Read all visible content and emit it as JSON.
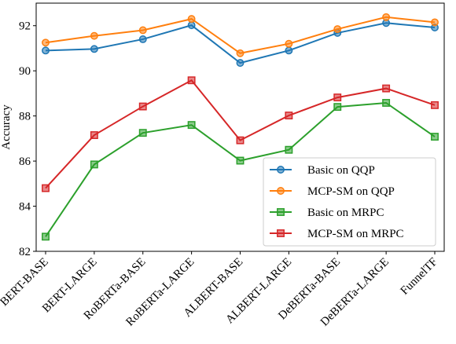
{
  "chart_data": {
    "type": "line",
    "title": "",
    "xlabel": "",
    "ylabel": "Accuracy",
    "ylim": [
      82,
      93
    ],
    "yticks": [
      82,
      84,
      86,
      88,
      90,
      92
    ],
    "grid": false,
    "legend_position": "lower-right",
    "categories": [
      "BERT-BASE",
      "BERT-LARGE",
      "RoBERTa-BASE",
      "RoBERTa-LARGE",
      "ALBERT-BASE",
      "ALBERT-LARGE",
      "DeBERTa-BASE",
      "DeBERTa-LARGE",
      "FunnelTF"
    ],
    "series": [
      {
        "name": "Basic on QQP",
        "color": "#1f77b4",
        "marker": "circle",
        "values": [
          90.9,
          90.97,
          91.4,
          92.02,
          90.35,
          90.9,
          91.68,
          92.12,
          91.92
        ]
      },
      {
        "name": "MCP-SM on QQP",
        "color": "#ff7f0e",
        "marker": "circle",
        "values": [
          91.25,
          91.55,
          91.8,
          92.3,
          90.78,
          91.2,
          91.85,
          92.38,
          92.15
        ]
      },
      {
        "name": "Basic on MRPC",
        "color": "#2ca02c",
        "marker": "square",
        "values": [
          82.65,
          85.85,
          87.25,
          87.6,
          86.02,
          86.5,
          88.4,
          88.58,
          87.08
        ]
      },
      {
        "name": "MCP-SM on MRPC",
        "color": "#d62728",
        "marker": "square",
        "values": [
          84.8,
          87.15,
          88.42,
          89.58,
          86.92,
          88.02,
          88.82,
          89.22,
          88.48
        ]
      }
    ]
  }
}
